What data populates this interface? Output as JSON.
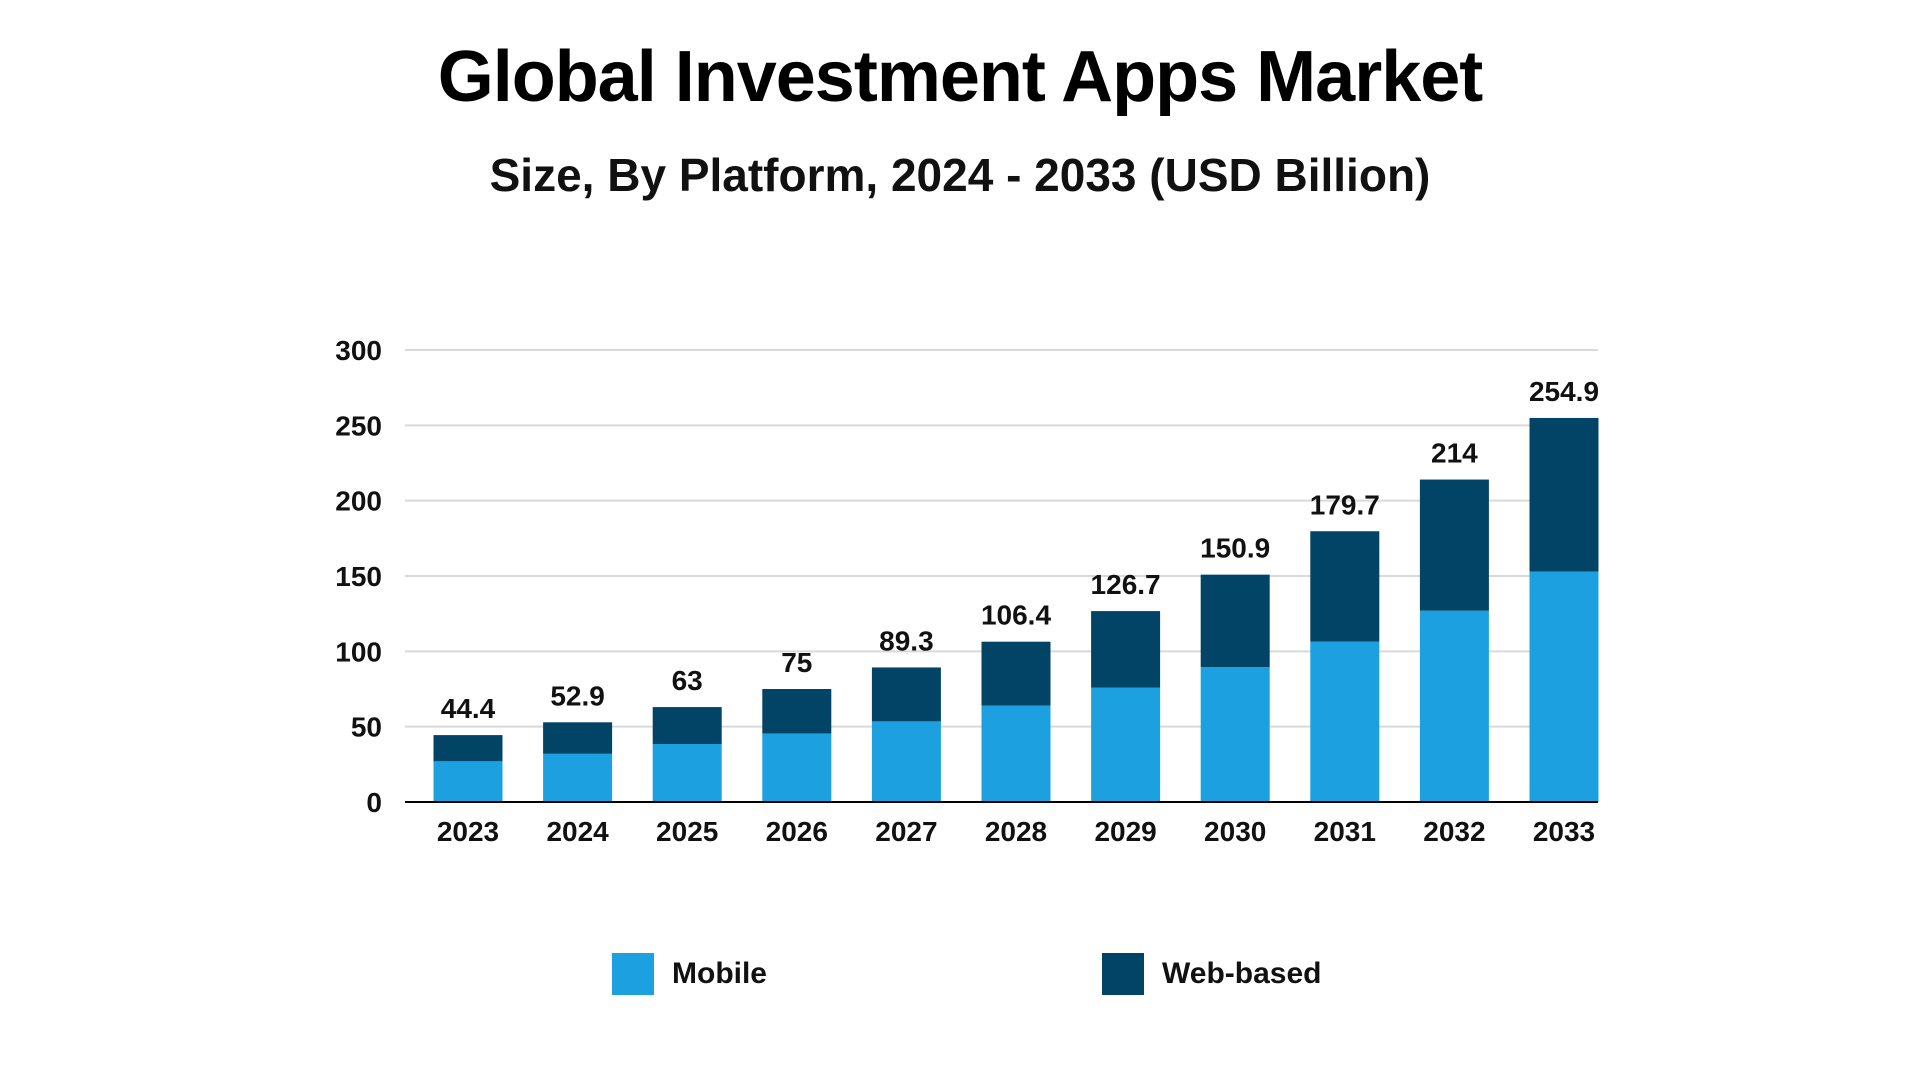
{
  "chart_data": {
    "type": "bar",
    "stacked": true,
    "title": "Global Investment Apps Market",
    "subtitle": "Size, By Platform, 2024 - 2033 (USD Billion)",
    "xlabel": "",
    "ylabel": "",
    "ylim": [
      0,
      300
    ],
    "yticks": [
      0,
      50,
      100,
      150,
      200,
      250,
      300
    ],
    "grid": true,
    "legend_position": "bottom",
    "categories": [
      "2023",
      "2024",
      "2025",
      "2026",
      "2027",
      "2028",
      "2029",
      "2030",
      "2031",
      "2032",
      "2033"
    ],
    "series": [
      {
        "name": "Mobile",
        "color": "#1CA0E0",
        "values": [
          27,
          32,
          38.5,
          45.5,
          53.5,
          64,
          76,
          89.5,
          106.5,
          127,
          153
        ]
      },
      {
        "name": "Web-based",
        "color": "#024465",
        "values": [
          17.4,
          20.9,
          24.5,
          29.5,
          35.8,
          42.4,
          50.7,
          61.4,
          73.2,
          87,
          101.9
        ]
      }
    ],
    "totals": [
      "44.4",
      "52.9",
      "63",
      "75",
      "89.3",
      "106.4",
      "126.7",
      "150.9",
      "179.7",
      "214",
      "254.9"
    ]
  },
  "colors": {
    "mobile": "#1CA0E0",
    "web": "#024465",
    "grid": "#D9D9D9",
    "axis": "#000000"
  }
}
